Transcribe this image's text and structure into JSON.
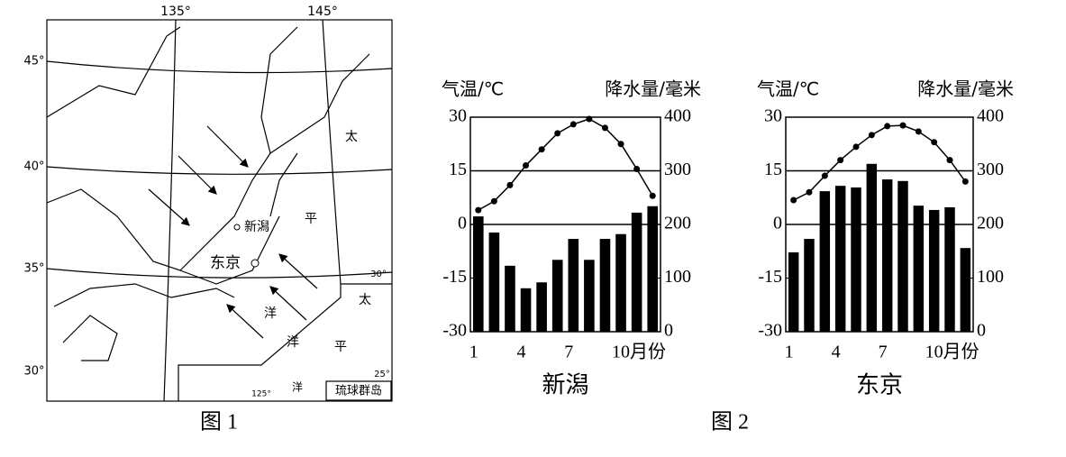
{
  "map": {
    "labels": [
      "135°",
      "145°",
      "45°",
      "40°",
      "35°",
      "30°",
      "新潟",
      "东京",
      "太",
      "平",
      "洋",
      "太",
      "平",
      "洋",
      "30°",
      "25°",
      "125°",
      "洋",
      "琉球群岛"
    ]
  },
  "figure_labels": [
    "图 1",
    "图 2"
  ],
  "chart_data": [
    {
      "type": "combo",
      "title": "新潟",
      "y_label": "气温/℃",
      "y2_label": "降水量/毫米",
      "categories": [
        "1",
        null,
        null,
        "4",
        null,
        null,
        "7",
        null,
        null,
        "10月份",
        null,
        null
      ],
      "ylim": [
        -30,
        30
      ],
      "yticks": [
        -30,
        -15,
        0,
        15,
        30
      ],
      "y2lim": [
        0,
        400
      ],
      "y2ticks": [
        0,
        100,
        200,
        300,
        400
      ],
      "hlines": [
        15,
        0
      ],
      "series": [
        {
          "kind": "bar",
          "axis": "y2",
          "color": "#000000",
          "values": [
            215,
            185,
            123,
            81,
            92,
            134,
            173,
            134,
            173,
            182,
            222,
            234
          ]
        },
        {
          "kind": "line",
          "color": "#000000",
          "values": [
            4,
            6.5,
            11,
            16.5,
            21,
            25.5,
            28,
            29.5,
            27,
            22.5,
            15.5,
            8
          ]
        }
      ]
    },
    {
      "type": "combo",
      "title": "东京",
      "y_label": "气温/℃",
      "y2_label": "降水量/毫米",
      "categories": [
        "1",
        null,
        null,
        "4",
        null,
        null,
        "7",
        null,
        null,
        "10月份",
        null,
        null
      ],
      "ylim": [
        -30,
        30
      ],
      "yticks": [
        -30,
        -15,
        0,
        15,
        30
      ],
      "y2lim": [
        0,
        400
      ],
      "y2ticks": [
        0,
        100,
        200,
        300,
        400
      ],
      "hlines": [
        15,
        0
      ],
      "series": [
        {
          "kind": "bar",
          "axis": "y2",
          "color": "#000000",
          "values": [
            148,
            173,
            262,
            272,
            269,
            313,
            284,
            281,
            235,
            227,
            232,
            156
          ]
        },
        {
          "kind": "line",
          "color": "#000000",
          "values": [
            6.8,
            9,
            13.6,
            18,
            21.7,
            25,
            27.5,
            27.7,
            26,
            23,
            18,
            12
          ]
        }
      ]
    }
  ]
}
